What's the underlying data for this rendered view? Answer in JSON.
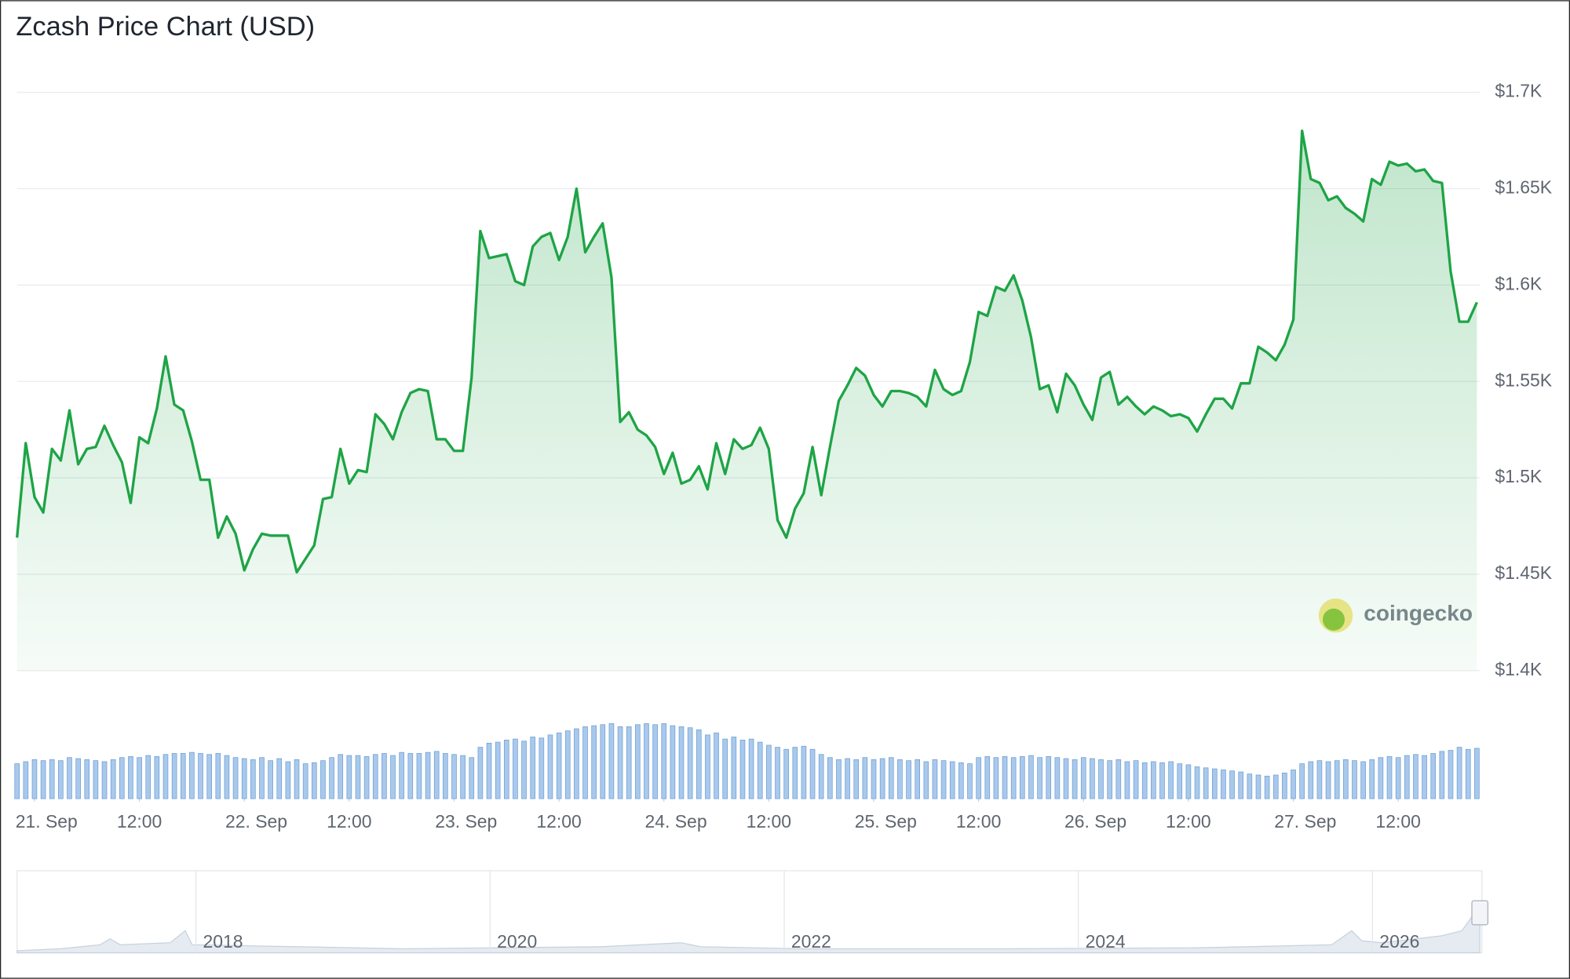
{
  "chart_data": {
    "type": "line",
    "title": "Zcash Price Chart (USD)",
    "watermark": "coingecko",
    "color": "#1ea446",
    "x": [
      -2,
      -1,
      0,
      1,
      2,
      3,
      4,
      5,
      6,
      7,
      8,
      9,
      10,
      11,
      12,
      13,
      14,
      15,
      16,
      17,
      18,
      19,
      20,
      21,
      22,
      23,
      24,
      25,
      26,
      27,
      28,
      29,
      30,
      31,
      32,
      33,
      34,
      35,
      36,
      37,
      38,
      39,
      40,
      41,
      42,
      43,
      44,
      45,
      46,
      47,
      48,
      49,
      50,
      51,
      52,
      53,
      54,
      55,
      56,
      57,
      58,
      59,
      60,
      61,
      62,
      63,
      64,
      65,
      66,
      67,
      68,
      69,
      70,
      71,
      72,
      73,
      74,
      75,
      76,
      77,
      78,
      79,
      80,
      81,
      82,
      83,
      84,
      85,
      86,
      87,
      88,
      89,
      90,
      91,
      92,
      93,
      94,
      95,
      96,
      97,
      98,
      99,
      100,
      101,
      102,
      103,
      104,
      105,
      106,
      107,
      108,
      109,
      110,
      111,
      112,
      113,
      114,
      115,
      116,
      117,
      118,
      119,
      120,
      121,
      122,
      123,
      124,
      125,
      126,
      127,
      128,
      129,
      130,
      131,
      132,
      133,
      134,
      135,
      136,
      137,
      138,
      139,
      140,
      141,
      142,
      143,
      144,
      145,
      146,
      147,
      148,
      149,
      150,
      151,
      152,
      153,
      154,
      155,
      156,
      157,
      158,
      159,
      160,
      161,
      162,
      163,
      164,
      165
    ],
    "values": [
      1469,
      1518,
      1490,
      1482,
      1515,
      1509,
      1535,
      1507,
      1515,
      1516,
      1527,
      1517,
      1508,
      1487,
      1521,
      1518,
      1536,
      1563,
      1538,
      1535,
      1519,
      1499,
      1499,
      1469,
      1480,
      1471,
      1452,
      1463,
      1471,
      1470,
      1470,
      1470,
      1451,
      1458,
      1465,
      1489,
      1490,
      1515,
      1497,
      1504,
      1503,
      1533,
      1528,
      1520,
      1534,
      1544,
      1546,
      1545,
      1520,
      1520,
      1514,
      1514,
      1552,
      1628,
      1614,
      1615,
      1616,
      1602,
      1600,
      1620,
      1625,
      1627,
      1613,
      1625,
      1650,
      1617,
      1625,
      1632,
      1604,
      1529,
      1534,
      1525,
      1522,
      1516,
      1502,
      1513,
      1497,
      1499,
      1506,
      1494,
      1518,
      1502,
      1520,
      1515,
      1517,
      1526,
      1515,
      1478,
      1469,
      1484,
      1492,
      1516,
      1491,
      1516,
      1540,
      1548,
      1557,
      1553,
      1543,
      1537,
      1545,
      1545,
      1544,
      1542,
      1537,
      1556,
      1546,
      1543,
      1545,
      1560,
      1586,
      1584,
      1599,
      1597,
      1605,
      1592,
      1573,
      1546,
      1548,
      1534,
      1554,
      1548,
      1538,
      1530,
      1552,
      1555,
      1538,
      1542,
      1537,
      1533,
      1537,
      1535,
      1532,
      1533,
      1531,
      1524,
      1533,
      1541,
      1541,
      1536,
      1549,
      1549,
      1568,
      1565,
      1561,
      1569,
      1582,
      1680,
      1655,
      1653,
      1644,
      1646,
      1640,
      1637,
      1633,
      1655,
      1652,
      1664,
      1662,
      1663,
      1659,
      1660,
      1654,
      1653,
      1607,
      1581,
      1581,
      1591
    ],
    "volume": {
      "color": "#a9c9ec",
      "values": [
        34,
        36,
        38,
        37,
        38,
        37,
        40,
        39,
        38,
        37,
        36,
        38,
        40,
        41,
        40,
        42,
        41,
        43,
        44,
        44,
        45,
        44,
        43,
        44,
        42,
        40,
        39,
        38,
        40,
        37,
        39,
        36,
        38,
        34,
        35,
        37,
        40,
        43,
        42,
        42,
        41,
        43,
        44,
        42,
        45,
        44,
        44,
        45,
        46,
        44,
        43,
        42,
        40,
        50,
        54,
        55,
        57,
        58,
        56,
        60,
        59,
        62,
        64,
        66,
        68,
        70,
        71,
        72,
        73,
        70,
        70,
        72,
        73,
        72,
        73,
        71,
        70,
        69,
        67,
        62,
        64,
        58,
        60,
        57,
        58,
        55,
        52,
        50,
        48,
        50,
        51,
        48,
        43,
        40,
        38,
        39,
        38,
        40,
        38,
        39,
        40,
        38,
        37,
        38,
        36,
        38,
        37,
        36,
        35,
        34,
        40,
        41,
        40,
        41,
        40,
        41,
        42,
        40,
        41,
        40,
        39,
        38,
        40,
        39,
        38,
        37,
        38,
        36,
        37,
        35,
        36,
        35,
        36,
        34,
        33,
        31,
        30,
        29,
        28,
        27,
        26,
        24,
        23,
        22,
        23,
        25,
        28,
        34,
        36,
        37,
        36,
        37,
        38,
        37,
        36,
        38,
        40,
        41,
        40,
        42,
        43,
        42,
        44,
        46,
        47,
        50,
        48,
        49
      ]
    },
    "xlim": [
      -2,
      165
    ],
    "xticks": [
      {
        "value": 0,
        "label": "21. Sep"
      },
      {
        "value": 12,
        "label": "12:00"
      },
      {
        "value": 24,
        "label": "22. Sep"
      },
      {
        "value": 36,
        "label": "12:00"
      },
      {
        "value": 48,
        "label": "23. Sep"
      },
      {
        "value": 60,
        "label": "12:00"
      },
      {
        "value": 72,
        "label": "24. Sep"
      },
      {
        "value": 84,
        "label": "12:00"
      },
      {
        "value": 96,
        "label": "25. Sep"
      },
      {
        "value": 108,
        "label": "12:00"
      },
      {
        "value": 120,
        "label": "26. Sep"
      },
      {
        "value": 132,
        "label": "12:00"
      },
      {
        "value": 144,
        "label": "27. Sep"
      },
      {
        "value": 156,
        "label": "12:00"
      }
    ],
    "ylim": [
      1400,
      1700
    ],
    "yticks": [
      {
        "value": 1400,
        "label": "$1.4K"
      },
      {
        "value": 1450,
        "label": "$1.45K"
      },
      {
        "value": 1500,
        "label": "$1.5K"
      },
      {
        "value": 1550,
        "label": "$1.55K"
      },
      {
        "value": 1600,
        "label": "$1.6K"
      },
      {
        "value": 1650,
        "label": "$1.65K"
      },
      {
        "value": 1700,
        "label": "$1.7K"
      }
    ],
    "grid": true,
    "navigator_xlim": [
      2016.6,
      2026.56
    ],
    "navigator_ticks": [
      2018,
      2020,
      2022,
      2024,
      2026
    ]
  }
}
